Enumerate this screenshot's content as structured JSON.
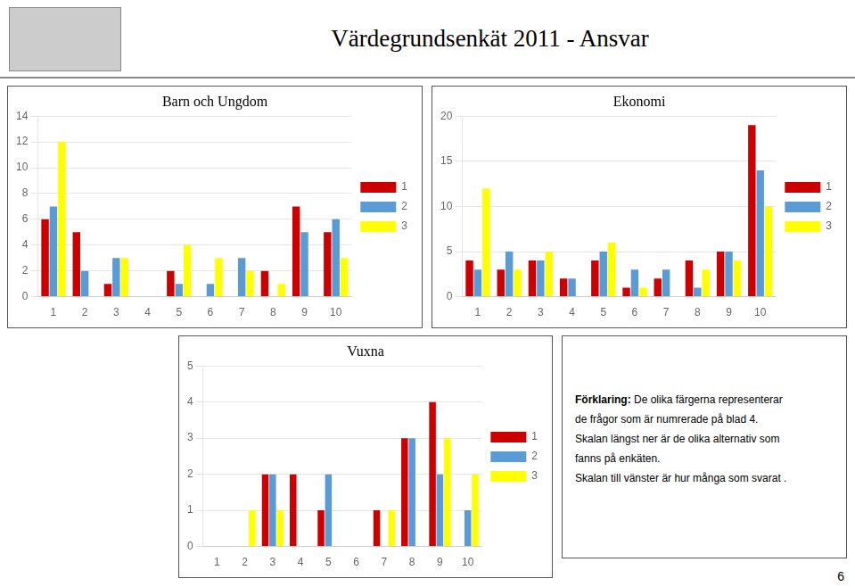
{
  "title": "Värdegrundsenkät 2011 - Ansvar",
  "annotations": [
    "Förklaring:",
    " De olika färgerna representerar",
    "de frågor som är numrerade på blad 4.",
    "Skalan längst ner är de olika alternativ som",
    "fanns på enkäten.",
    "Skalan till vänster är hur många som svarat .",
    "6"
  ],
  "chart_data": [
    {
      "type": "bar",
      "title": "Barn och Ungdom",
      "categories": [
        1,
        2,
        3,
        4,
        5,
        6,
        7,
        8,
        9,
        10
      ],
      "series": [
        {
          "name": "1",
          "color": "#cc0000",
          "values": [
            6,
            5,
            1,
            0,
            2,
            0,
            0,
            2,
            7,
            5
          ]
        },
        {
          "name": "2",
          "color": "#5b9bd5",
          "values": [
            7,
            2,
            3,
            0,
            1,
            1,
            3,
            0,
            5,
            6
          ]
        },
        {
          "name": "3",
          "color": "#ffff00",
          "values": [
            12,
            0,
            3,
            0,
            4,
            3,
            2,
            1,
            0,
            3
          ]
        }
      ],
      "ylim": [
        0,
        14
      ],
      "yticks": [
        0,
        2,
        4,
        6,
        8,
        10,
        12,
        14
      ],
      "grid": true,
      "legend": "right"
    },
    {
      "type": "bar",
      "title": "Ekonomi",
      "categories": [
        1,
        2,
        3,
        4,
        5,
        6,
        7,
        8,
        9,
        10
      ],
      "series": [
        {
          "name": "1",
          "color": "#cc0000",
          "values": [
            4,
            3,
            4,
            2,
            4,
            1,
            2,
            4,
            5,
            19
          ]
        },
        {
          "name": "2",
          "color": "#5b9bd5",
          "values": [
            3,
            5,
            4,
            2,
            5,
            3,
            3,
            1,
            5,
            14
          ]
        },
        {
          "name": "3",
          "color": "#ffff00",
          "values": [
            12,
            3,
            5,
            0,
            6,
            1,
            0,
            3,
            4,
            10
          ]
        }
      ],
      "ylim": [
        0,
        20
      ],
      "yticks": [
        0,
        5,
        10,
        15,
        20
      ],
      "grid": true,
      "legend": "right"
    },
    {
      "type": "bar",
      "title": "Vuxna",
      "categories": [
        1,
        2,
        3,
        4,
        5,
        6,
        7,
        8,
        9,
        10
      ],
      "series": [
        {
          "name": "1",
          "color": "#cc0000",
          "values": [
            0,
            0,
            2,
            2,
            1,
            0,
            1,
            3,
            4,
            0
          ]
        },
        {
          "name": "2",
          "color": "#5b9bd5",
          "values": [
            0,
            0,
            2,
            0,
            2,
            0,
            0,
            3,
            2,
            1
          ]
        },
        {
          "name": "3",
          "color": "#ffff00",
          "values": [
            0,
            1,
            1,
            0,
            0,
            0,
            1,
            0,
            3,
            2
          ]
        }
      ],
      "ylim": [
        0,
        5
      ],
      "yticks": [
        0,
        1,
        2,
        3,
        4,
        5
      ],
      "grid": true,
      "legend": "right"
    }
  ]
}
